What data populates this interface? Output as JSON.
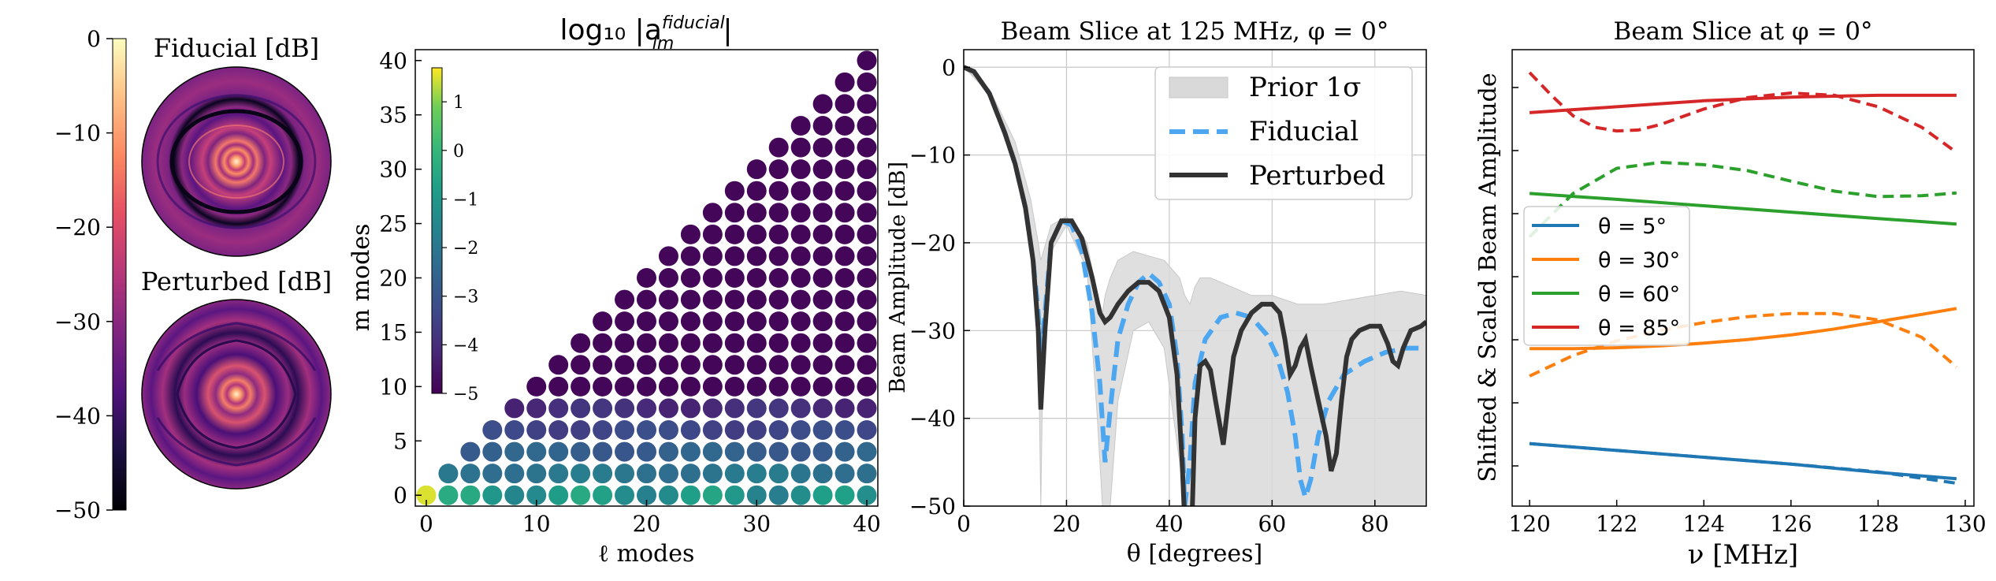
{
  "chart_data": [
    {
      "type": "heatmap",
      "panel": "beam-maps",
      "images": [
        {
          "title": "Fiducial [dB]",
          "rings": 4
        },
        {
          "title": "Perturbed [dB]",
          "rings": 3
        }
      ],
      "colorbar": {
        "ticks": [
          0,
          -10,
          -20,
          -30,
          -40,
          -50
        ],
        "ylim": [
          -50,
          0
        ],
        "colormap": "magma"
      }
    },
    {
      "type": "scatter",
      "panel": "alm-coefficients",
      "title": "log₁₀ |a",
      "title_sup": "fiducial",
      "title_sub": "lm",
      "title_end": "|",
      "xlabel": "ℓ modes",
      "ylabel": "m modes",
      "xlim": [
        -1,
        41
      ],
      "ylim": [
        -1,
        41
      ],
      "xticks": [
        0,
        10,
        20,
        30,
        40
      ],
      "yticks": [
        0,
        5,
        10,
        15,
        20,
        25,
        30,
        35,
        40
      ],
      "grid": "even l, m <= l",
      "colorbar": {
        "ticks": [
          1,
          0,
          -1,
          -2,
          -3,
          -4,
          -5
        ],
        "range": [
          -5,
          1.7
        ],
        "colormap": "viridis"
      }
    },
    {
      "type": "line",
      "panel": "beam-slice-125",
      "title": "Beam Slice at 125 MHz, φ = 0°",
      "xlabel": "θ [degrees]",
      "ylabel": "Beam Amplitude [dB]",
      "xlim": [
        0,
        90
      ],
      "ylim": [
        -50,
        2
      ],
      "xticks": [
        0,
        20,
        40,
        60,
        80
      ],
      "yticks": [
        0,
        -10,
        -20,
        -30,
        -40,
        -50
      ],
      "grid": true,
      "legend_position": "top-right",
      "legend": [
        "Prior 1σ",
        "Fiducial",
        "Perturbed"
      ],
      "prior_band": {
        "x": [
          0,
          5,
          10,
          13,
          14.5,
          15,
          15.5,
          17,
          20,
          24,
          26,
          27,
          27.5,
          28.5,
          30,
          33,
          36,
          39,
          42,
          43,
          44,
          45,
          46,
          48,
          52,
          56,
          60,
          65,
          70,
          75,
          80,
          85,
          90
        ],
        "upper": [
          0,
          -2.5,
          -8.5,
          -15,
          -20,
          -22,
          -21,
          -18,
          -17,
          -20,
          -26,
          -28,
          -26,
          -24,
          -22,
          -21,
          -21.5,
          -22,
          -24,
          -26,
          -27,
          -25,
          -24,
          -24,
          -25,
          -26,
          -26,
          -27,
          -27,
          -26.5,
          -26,
          -25.5,
          -26
        ],
        "lower": [
          0,
          -3,
          -10,
          -20,
          -30,
          -50,
          -30,
          -21,
          -18,
          -23,
          -40,
          -50,
          -50,
          -50,
          -38,
          -30,
          -29,
          -32,
          -45,
          -50,
          -50,
          -50,
          -50,
          -50,
          -50,
          -50,
          -50,
          -50,
          -50,
          -50,
          -50,
          -50,
          -50
        ]
      },
      "series": [
        {
          "name": "Fiducial",
          "color": "#4da6f0",
          "x": [
            0,
            2,
            5,
            8,
            10,
            12,
            13.5,
            14.5,
            15,
            15.8,
            17,
            19,
            21,
            23,
            25,
            26.5,
            27.5,
            28.5,
            30,
            32,
            34,
            36,
            38,
            40,
            41.5,
            42.5,
            43,
            44,
            45,
            47,
            50,
            53,
            56,
            59,
            61,
            63,
            64.5,
            65.5,
            66.5,
            67.5,
            69,
            71,
            74,
            78,
            82,
            86,
            90
          ],
          "y": [
            0,
            -0.5,
            -3,
            -7.5,
            -11,
            -16,
            -22,
            -28,
            -33,
            -28,
            -20,
            -17.5,
            -18,
            -21,
            -28,
            -36,
            -45,
            -39,
            -31,
            -27,
            -24.5,
            -23.5,
            -24.5,
            -27,
            -33,
            -42,
            -50,
            -45,
            -36,
            -31,
            -28.5,
            -28,
            -28.5,
            -30.5,
            -33,
            -37,
            -42,
            -47,
            -49,
            -47,
            -42,
            -38,
            -35,
            -33.5,
            -32.5,
            -32,
            -32
          ]
        },
        {
          "name": "Perturbed",
          "color": "#333333",
          "x": [
            0,
            2,
            5,
            8,
            10,
            12,
            13.5,
            14.5,
            15,
            15.8,
            17,
            19,
            21,
            23,
            25,
            26.5,
            27.5,
            28.5,
            30,
            32,
            34,
            36,
            38,
            40,
            41.5,
            42.5,
            43,
            44,
            44.5,
            45,
            46,
            47,
            48,
            49,
            50.5,
            51.5,
            52.5,
            54,
            56,
            58,
            60,
            61.5,
            62.5,
            63.5,
            64.5,
            65.5,
            66.5,
            67.5,
            69,
            70.5,
            71.5,
            72.5,
            73.5,
            74.5,
            75.5,
            77,
            79,
            81,
            82.5,
            83.5,
            84.5,
            85.5,
            87,
            89,
            90
          ],
          "y": [
            0,
            -0.5,
            -3,
            -7.5,
            -11,
            -16,
            -22,
            -30,
            -39,
            -30,
            -20,
            -17.5,
            -17.5,
            -19.5,
            -24,
            -28,
            -29,
            -28.5,
            -27,
            -25.5,
            -24.5,
            -24.5,
            -25.5,
            -28.5,
            -35,
            -45,
            -52,
            -52,
            -50,
            -40,
            -34,
            -33.5,
            -34.5,
            -38,
            -43,
            -38,
            -33,
            -30,
            -28,
            -27,
            -27,
            -28,
            -31,
            -35,
            -34,
            -32,
            -31,
            -34,
            -38,
            -42,
            -46,
            -44,
            -38,
            -33,
            -31,
            -30,
            -29.5,
            -29.5,
            -31.5,
            -33.5,
            -34,
            -32,
            -30,
            -29.5,
            -29
          ]
        }
      ]
    },
    {
      "type": "line",
      "panel": "beam-slice-frequency",
      "title": "Beam Slice at φ = 0°",
      "xlabel": "ν [MHz]",
      "ylabel": "Shifted & Scaled Beam Amplitude",
      "xlim": [
        119.6,
        130.2
      ],
      "ylim": [
        0,
        1
      ],
      "xticks": [
        120,
        122,
        124,
        126,
        128,
        130
      ],
      "legend_position": "left",
      "legend": [
        "θ = 5°",
        "θ = 30°",
        "θ = 60°",
        "θ = 85°"
      ],
      "series": [
        {
          "name": "θ = 5°",
          "color": "#1f77b4",
          "style": "solid",
          "x": [
            120,
            122,
            124,
            126,
            128,
            129.8
          ],
          "y": [
            0.137,
            0.122,
            0.107,
            0.092,
            0.074,
            0.06
          ]
        },
        {
          "name": "θ = 5°",
          "color": "#1f77b4",
          "style": "dashed",
          "x": [
            120,
            122,
            124,
            126,
            128,
            129.8
          ],
          "y": [
            0.137,
            0.122,
            0.107,
            0.092,
            0.075,
            0.05
          ]
        },
        {
          "name": "θ = 30°",
          "color": "#ff7f0e",
          "style": "solid",
          "x": [
            120,
            121,
            122,
            123,
            124,
            125,
            126,
            127,
            128,
            129,
            129.8
          ],
          "y": [
            0.345,
            0.345,
            0.347,
            0.351,
            0.357,
            0.365,
            0.375,
            0.388,
            0.404,
            0.42,
            0.433
          ]
        },
        {
          "name": "θ = 30°",
          "color": "#ff7f0e",
          "style": "dashed",
          "x": [
            120,
            121,
            122,
            123,
            124,
            125,
            126,
            127,
            128,
            129,
            129.8
          ],
          "y": [
            0.285,
            0.33,
            0.362,
            0.385,
            0.402,
            0.415,
            0.422,
            0.422,
            0.408,
            0.37,
            0.305
          ]
        },
        {
          "name": "θ = 60°",
          "color": "#2ca02c",
          "style": "solid",
          "x": [
            120,
            122,
            124,
            126,
            128,
            129.8
          ],
          "y": [
            0.685,
            0.672,
            0.658,
            0.644,
            0.63,
            0.618
          ]
        },
        {
          "name": "θ = 60°",
          "color": "#2ca02c",
          "style": "dashed",
          "x": [
            120,
            121,
            122,
            123,
            124,
            125,
            126,
            127,
            128,
            129,
            129.8
          ],
          "y": [
            0.59,
            0.685,
            0.74,
            0.753,
            0.748,
            0.735,
            0.712,
            0.69,
            0.678,
            0.68,
            0.686
          ]
        },
        {
          "name": "θ = 85°",
          "color": "#d62728",
          "style": "solid",
          "x": [
            120,
            122,
            124,
            126,
            128,
            129.8
          ],
          "y": [
            0.862,
            0.875,
            0.888,
            0.896,
            0.9,
            0.9
          ]
        },
        {
          "name": "θ = 85°",
          "color": "#d62728",
          "style": "dashed",
          "x": [
            120,
            120.5,
            121,
            121.5,
            122,
            122.5,
            123,
            124,
            125,
            126,
            127,
            128,
            129,
            129.8
          ],
          "y": [
            0.95,
            0.9,
            0.855,
            0.83,
            0.822,
            0.824,
            0.836,
            0.87,
            0.895,
            0.905,
            0.9,
            0.875,
            0.83,
            0.775
          ]
        }
      ]
    }
  ]
}
